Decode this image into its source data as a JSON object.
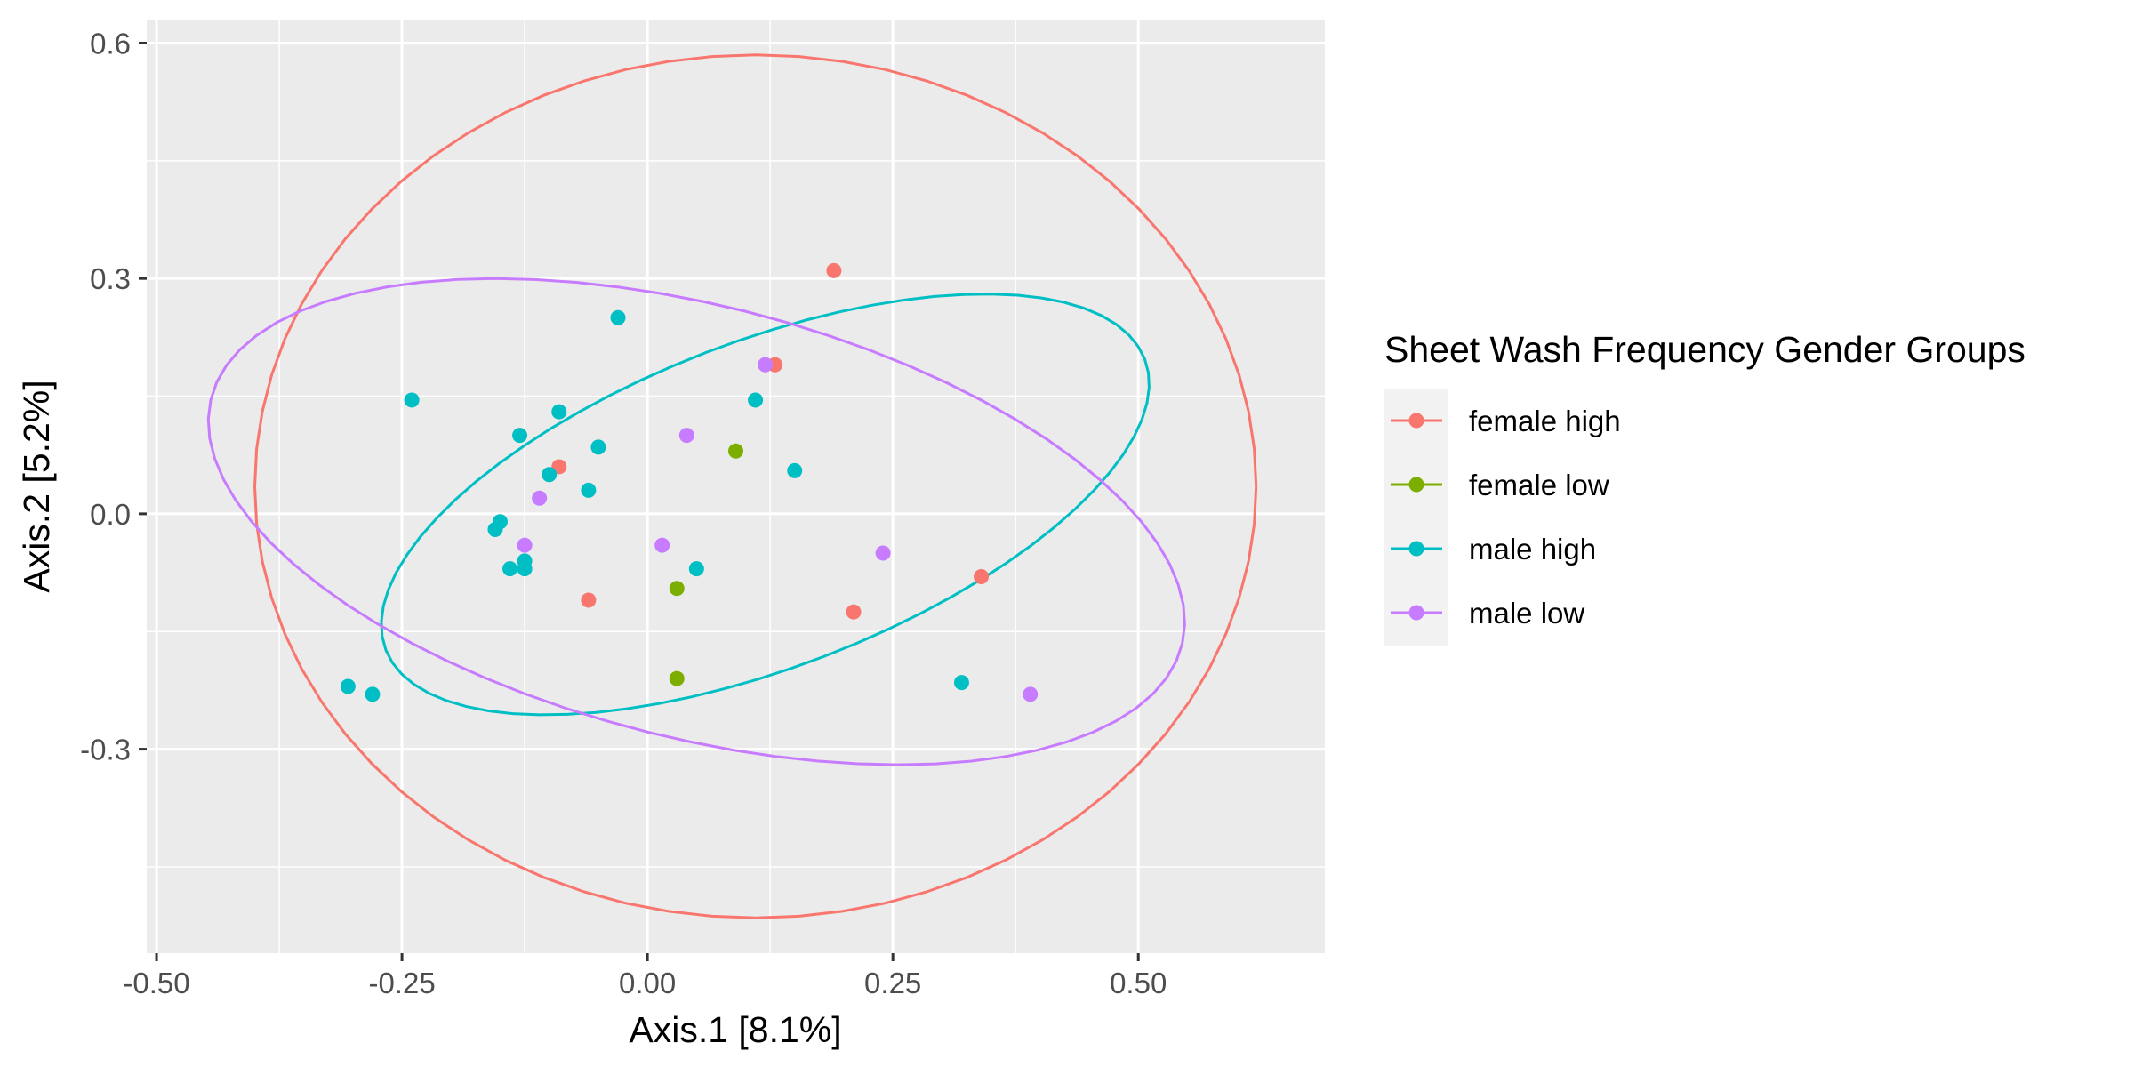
{
  "chart_data": {
    "type": "scatter",
    "title": "",
    "xlabel": "Axis.1   [8.1%]",
    "ylabel": "Axis.2   [5.2%]",
    "xlim": [
      -0.51,
      0.69
    ],
    "ylim": [
      -0.56,
      0.63
    ],
    "x_ticks": [
      -0.5,
      -0.25,
      0.0,
      0.25,
      0.5
    ],
    "x_tick_labels": [
      "-0.50",
      "-0.25",
      "0.00",
      "0.25",
      "0.50"
    ],
    "y_ticks": [
      -0.3,
      0.0,
      0.3,
      0.6
    ],
    "y_tick_labels": [
      "-0.3",
      "0.0",
      "0.3",
      "0.6"
    ],
    "grid": true,
    "legend": {
      "title": "Sheet Wash Frequency Gender Groups",
      "placement": "right"
    },
    "series": [
      {
        "name": "female high",
        "color": "#F8766D",
        "points": [
          [
            0.19,
            0.31
          ],
          [
            0.13,
            0.19
          ],
          [
            -0.09,
            0.06
          ],
          [
            -0.06,
            -0.11
          ],
          [
            0.21,
            -0.125
          ],
          [
            0.34,
            -0.08
          ]
        ],
        "ellipse": {
          "cx": 0.11,
          "cy": 0.035,
          "rx": 0.51,
          "ry": 0.55
        }
      },
      {
        "name": "female low",
        "color": "#7CAE00",
        "points": [
          [
            0.09,
            0.08
          ],
          [
            0.03,
            -0.095
          ],
          [
            0.03,
            -0.21
          ]
        ]
      },
      {
        "name": "male high",
        "color": "#00BFC4",
        "points": [
          [
            -0.03,
            0.25
          ],
          [
            -0.24,
            0.145
          ],
          [
            -0.09,
            0.13
          ],
          [
            -0.13,
            0.1
          ],
          [
            -0.05,
            0.085
          ],
          [
            -0.1,
            0.05
          ],
          [
            -0.06,
            0.03
          ],
          [
            0.11,
            0.145
          ],
          [
            0.15,
            0.055
          ],
          [
            -0.15,
            -0.01
          ],
          [
            -0.155,
            -0.02
          ],
          [
            -0.14,
            -0.07
          ],
          [
            -0.125,
            -0.06
          ],
          [
            -0.125,
            -0.07
          ],
          [
            0.05,
            -0.07
          ],
          [
            -0.305,
            -0.22
          ],
          [
            -0.28,
            -0.23
          ],
          [
            0.32,
            -0.215
          ]
        ],
        "ellipse": {
          "cx": 0.12,
          "cy": 0.012,
          "rx": 0.43,
          "ry": 0.2,
          "angle": 28
        }
      },
      {
        "name": "male low",
        "color": "#C77CFF",
        "points": [
          [
            0.12,
            0.19
          ],
          [
            0.04,
            0.1
          ],
          [
            -0.11,
            0.02
          ],
          [
            -0.125,
            -0.04
          ],
          [
            0.015,
            -0.04
          ],
          [
            0.24,
            -0.05
          ],
          [
            0.39,
            -0.23
          ]
        ],
        "ellipse": {
          "cx": 0.05,
          "cy": -0.01,
          "rx": 0.52,
          "ry": 0.27,
          "angle": -20
        }
      }
    ]
  }
}
